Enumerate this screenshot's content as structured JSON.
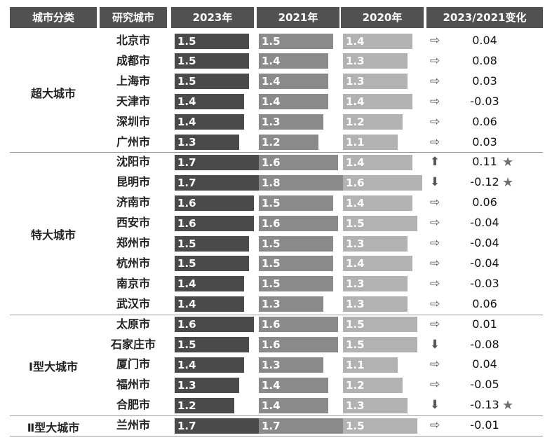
{
  "chart_data": {
    "type": "table",
    "headers": [
      "城市分类",
      "研究城市",
      "2023年",
      "2021年",
      "2020年",
      "2023/2021变化"
    ],
    "groups": [
      {
        "name": "超大城市",
        "rows": [
          {
            "city": "北京市",
            "y2023": 1.5,
            "y2021": 1.5,
            "y2020": 1.4,
            "change": "0.04",
            "trend": "flat",
            "star": false
          },
          {
            "city": "成都市",
            "y2023": 1.5,
            "y2021": 1.4,
            "y2020": 1.3,
            "change": "0.08",
            "trend": "flat",
            "star": false
          },
          {
            "city": "上海市",
            "y2023": 1.5,
            "y2021": 1.4,
            "y2020": 1.3,
            "change": "0.03",
            "trend": "flat",
            "star": false
          },
          {
            "city": "天津市",
            "y2023": 1.4,
            "y2021": 1.4,
            "y2020": 1.4,
            "change": "-0.03",
            "trend": "flat",
            "star": false
          },
          {
            "city": "深圳市",
            "y2023": 1.4,
            "y2021": 1.3,
            "y2020": 1.2,
            "change": "0.06",
            "trend": "flat",
            "star": false
          },
          {
            "city": "广州市",
            "y2023": 1.3,
            "y2021": 1.2,
            "y2020": 1.1,
            "change": "0.03",
            "trend": "flat",
            "star": false
          }
        ]
      },
      {
        "name": "特大城市",
        "rows": [
          {
            "city": "沈阳市",
            "y2023": 1.7,
            "y2021": 1.6,
            "y2020": 1.4,
            "change": "0.11",
            "trend": "up",
            "star": true
          },
          {
            "city": "昆明市",
            "y2023": 1.7,
            "y2021": 1.8,
            "y2020": 1.6,
            "change": "-0.12",
            "trend": "down",
            "star": true
          },
          {
            "city": "济南市",
            "y2023": 1.6,
            "y2021": 1.5,
            "y2020": 1.4,
            "change": "0.06",
            "trend": "flat",
            "star": false
          },
          {
            "city": "西安市",
            "y2023": 1.6,
            "y2021": 1.6,
            "y2020": 1.5,
            "change": "-0.04",
            "trend": "flat",
            "star": false
          },
          {
            "city": "郑州市",
            "y2023": 1.5,
            "y2021": 1.5,
            "y2020": 1.3,
            "change": "-0.04",
            "trend": "flat",
            "star": false
          },
          {
            "city": "杭州市",
            "y2023": 1.5,
            "y2021": 1.5,
            "y2020": 1.4,
            "change": "-0.04",
            "trend": "flat",
            "star": false
          },
          {
            "city": "南京市",
            "y2023": 1.4,
            "y2021": 1.5,
            "y2020": 1.3,
            "change": "-0.03",
            "trend": "flat",
            "star": false
          },
          {
            "city": "武汉市",
            "y2023": 1.4,
            "y2021": 1.3,
            "y2020": 1.3,
            "change": "0.06",
            "trend": "flat",
            "star": false
          }
        ]
      },
      {
        "name": "Ⅰ型大城市",
        "rows": [
          {
            "city": "太原市",
            "y2023": 1.6,
            "y2021": 1.6,
            "y2020": 1.5,
            "change": "0.01",
            "trend": "flat",
            "star": false
          },
          {
            "city": "石家庄市",
            "y2023": 1.5,
            "y2021": 1.6,
            "y2020": 1.5,
            "change": "-0.08",
            "trend": "down",
            "star": false
          },
          {
            "city": "厦门市",
            "y2023": 1.4,
            "y2021": 1.3,
            "y2020": 1.1,
            "change": "0.04",
            "trend": "flat",
            "star": false
          },
          {
            "city": "福州市",
            "y2023": 1.3,
            "y2021": 1.4,
            "y2020": 1.2,
            "change": "-0.05",
            "trend": "flat",
            "star": false
          },
          {
            "city": "合肥市",
            "y2023": 1.2,
            "y2021": 1.4,
            "y2020": 1.3,
            "change": "-0.13",
            "trend": "down",
            "star": true
          }
        ]
      },
      {
        "name": "Ⅱ型大城市",
        "rows": [
          {
            "city": "兰州市",
            "y2023": 1.7,
            "y2021": 1.7,
            "y2020": 1.5,
            "change": "-0.01",
            "trend": "flat",
            "star": false
          }
        ]
      }
    ],
    "series_colors": {
      "y2023": "#4a4a4a",
      "y2021": "#8a8a8a",
      "y2020": "#b2b2b2"
    },
    "header_color": "#515151",
    "grid": false
  }
}
